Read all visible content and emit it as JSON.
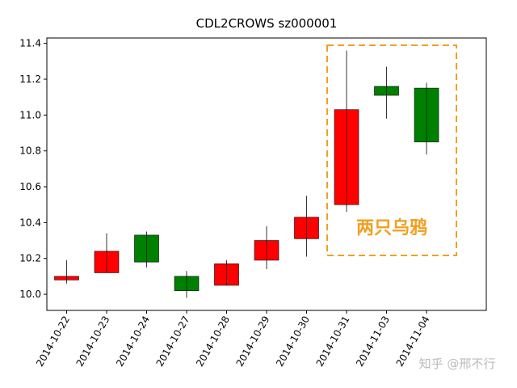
{
  "chart_data": {
    "type": "candlestick",
    "title": "CDL2CROWS sz000001",
    "categories": [
      "2014-10-22",
      "2014-10-23",
      "2014-10-24",
      "2014-10-27",
      "2014-10-28",
      "2014-10-29",
      "2014-10-30",
      "2014-10-31",
      "2014-11-03",
      "2014-11-04"
    ],
    "open": [
      10.08,
      10.12,
      10.33,
      10.1,
      10.05,
      10.19,
      10.31,
      10.5,
      11.16,
      11.15
    ],
    "high": [
      10.19,
      10.34,
      10.35,
      10.13,
      10.19,
      10.38,
      10.55,
      11.36,
      11.27,
      11.18
    ],
    "low": [
      10.06,
      10.12,
      10.15,
      9.98,
      10.05,
      10.14,
      10.21,
      10.46,
      10.98,
      10.78
    ],
    "close": [
      10.1,
      10.24,
      10.18,
      10.02,
      10.17,
      10.3,
      10.43,
      11.03,
      11.11,
      10.85
    ],
    "up_color": "#ff0000",
    "down_color": "#008000",
    "ylim": [
      9.91,
      11.43
    ],
    "yticks": [
      {
        "value": 10,
        "label": "10.0"
      },
      10.2,
      10.4,
      10.6,
      10.8,
      {
        "value": 11,
        "label": "11.0"
      },
      11.2,
      11.4
    ],
    "annotation": "两只乌鸦",
    "annotation_color": "#f0a020",
    "watermark": "知乎 @邢不行"
  }
}
